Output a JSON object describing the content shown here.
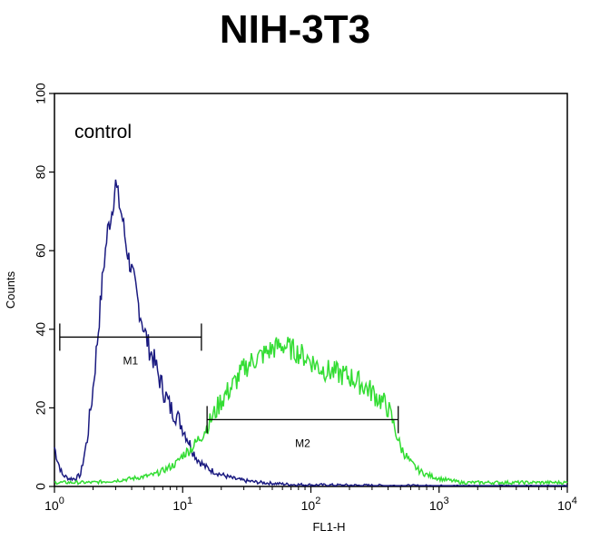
{
  "chart_data": {
    "type": "line",
    "title": "NIH-3T3",
    "xlabel": "FL1-H",
    "ylabel": "Counts",
    "xscale": "log",
    "xlim": [
      1,
      10000
    ],
    "ylim": [
      0,
      100
    ],
    "x_ticks": [
      {
        "value": 1,
        "base": "10",
        "exp": "0"
      },
      {
        "value": 10,
        "base": "10",
        "exp": "1"
      },
      {
        "value": 100,
        "base": "10",
        "exp": "2"
      },
      {
        "value": 1000,
        "base": "10",
        "exp": "3"
      },
      {
        "value": 10000,
        "base": "10",
        "exp": "4"
      }
    ],
    "y_ticks": [
      0,
      20,
      40,
      60,
      80,
      100
    ],
    "annotation": "control",
    "grid": false,
    "series": [
      {
        "color": "#1a1a80",
        "x": [
          1,
          1.05,
          1.15,
          1.3,
          1.45,
          1.6,
          1.8,
          2.0,
          2.2,
          2.4,
          2.6,
          2.8,
          3.0,
          3.2,
          3.4,
          3.6,
          3.8,
          4.0,
          4.3,
          4.6,
          5.0,
          5.5,
          6.0,
          6.5,
          7.0,
          8.0,
          9.0,
          10,
          11,
          12,
          13,
          15,
          17,
          20,
          25,
          30,
          40,
          50,
          70,
          100,
          200,
          500,
          1000,
          10000
        ],
        "values": [
          10,
          7,
          3,
          2,
          2,
          3,
          12,
          25,
          40,
          55,
          65,
          70,
          77,
          72,
          68,
          62,
          58,
          55,
          50,
          45,
          40,
          35,
          32,
          28,
          25,
          20,
          18,
          15,
          12,
          9,
          7,
          5,
          4,
          3,
          2,
          1.5,
          1,
          0.8,
          0.5,
          0.4,
          0.3,
          0.2,
          0.1,
          0
        ]
      },
      {
        "color": "#33dd33",
        "x": [
          1,
          2,
          3,
          4,
          5,
          6,
          7,
          8,
          9,
          10,
          12,
          14,
          16,
          18,
          20,
          25,
          30,
          35,
          40,
          50,
          60,
          70,
          80,
          90,
          100,
          120,
          150,
          200,
          250,
          300,
          350,
          400,
          450,
          500,
          600,
          700,
          800,
          1000,
          1500,
          2000,
          5000,
          10000
        ],
        "values": [
          1,
          1,
          1.5,
          2,
          2.5,
          3,
          4,
          5,
          6,
          8,
          10,
          13,
          16,
          19,
          22,
          26,
          30,
          32,
          33,
          35,
          36,
          35,
          34,
          33,
          32,
          30,
          29,
          28,
          26,
          24,
          22,
          20,
          15,
          10,
          6,
          4,
          3,
          2,
          1,
          1,
          1,
          1
        ]
      }
    ],
    "gates": [
      {
        "label": "M1",
        "x_start": 1.1,
        "x_end": 14,
        "y": 38
      },
      {
        "label": "M2",
        "x_start": 15.5,
        "x_end": 480,
        "y": 17
      }
    ]
  }
}
